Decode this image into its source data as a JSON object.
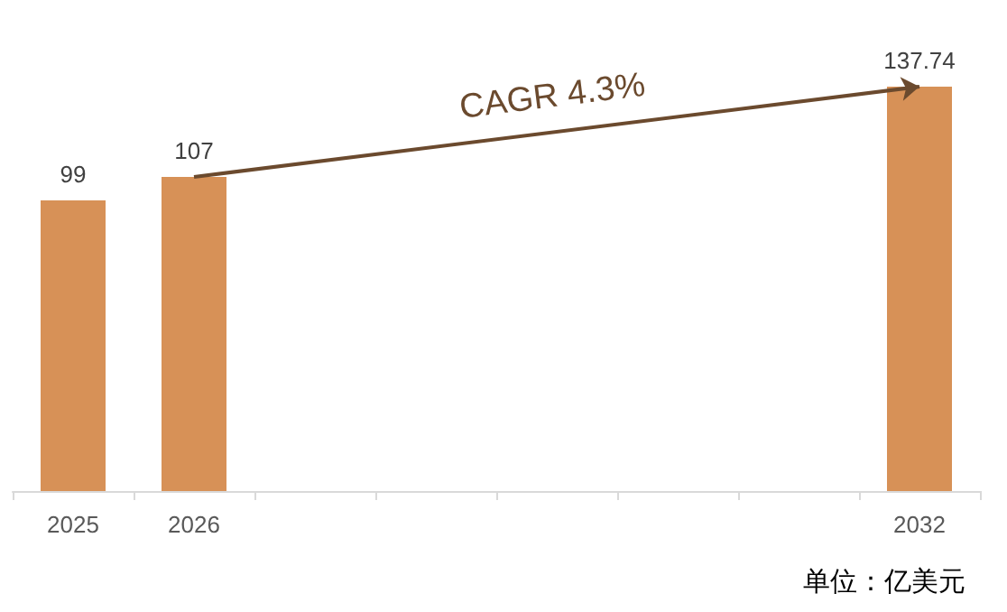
{
  "chart_data": {
    "type": "bar",
    "categories": [
      "2025",
      "2026",
      null,
      null,
      null,
      null,
      null,
      "2032"
    ],
    "values": [
      99,
      107,
      null,
      null,
      null,
      null,
      null,
      137.74
    ],
    "color": "#d79157",
    "data_labels": true,
    "annotations": [
      "CAGR 4.3%",
      "单位：亿美元"
    ]
  }
}
